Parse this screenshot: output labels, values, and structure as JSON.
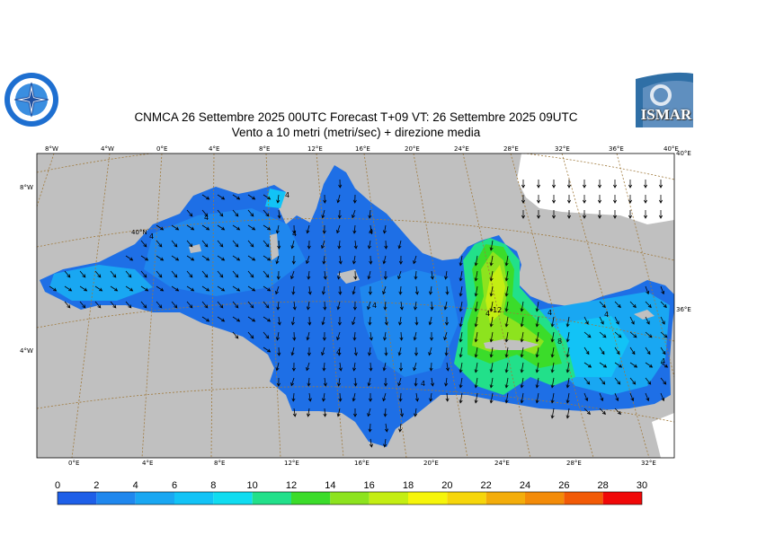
{
  "title_line1": "CNMCA 26 Settembre 2025 00UTC Forecast T+09 VT: 26 Settembre 2025 09UTC",
  "title_line2": "Vento a 10 metri (metri/sec) + direzione media",
  "logo_right_text": "ISMAR",
  "top_lon_labels": [
    "8°W",
    "4°W",
    "0°E",
    "4°E",
    "8°E",
    "12°E",
    "16°E",
    "20°E",
    "24°E",
    "28°E",
    "32°E",
    "36°E",
    "40°E"
  ],
  "bottom_lon_labels": [
    "0°E",
    "4°E",
    "8°E",
    "12°E",
    "16°E",
    "20°E",
    "24°E",
    "28°E",
    "32°E"
  ],
  "left_lat_labels": [
    "8°W",
    "40°N",
    "4°W"
  ],
  "right_lat_labels": [
    "40°E",
    "36°E"
  ],
  "contour_values": [
    "4",
    "4",
    "4",
    "4",
    "4",
    "4",
    "4",
    "4",
    "4",
    "4",
    "12",
    "8",
    "4",
    "4"
  ],
  "colorbar": {
    "ticks": [
      "0",
      "2",
      "4",
      "6",
      "8",
      "10",
      "12",
      "14",
      "16",
      "18",
      "20",
      "22",
      "24",
      "26",
      "28",
      "30"
    ],
    "colors": [
      "#1e5fe8",
      "#1f87ee",
      "#19a7f2",
      "#12c3f6",
      "#10dcf0",
      "#22e08a",
      "#3bdc2a",
      "#8de31e",
      "#c4ee12",
      "#f6f50a",
      "#f6d60a",
      "#f3ad0a",
      "#f38b08",
      "#f25a06",
      "#f00808",
      "#f5148e"
    ],
    "unit": "m/s"
  },
  "colors": {
    "land": "#c0c0c0",
    "sea_base": "#1e6fe6",
    "grid": "#a07a3c",
    "arrow": "#000000"
  }
}
